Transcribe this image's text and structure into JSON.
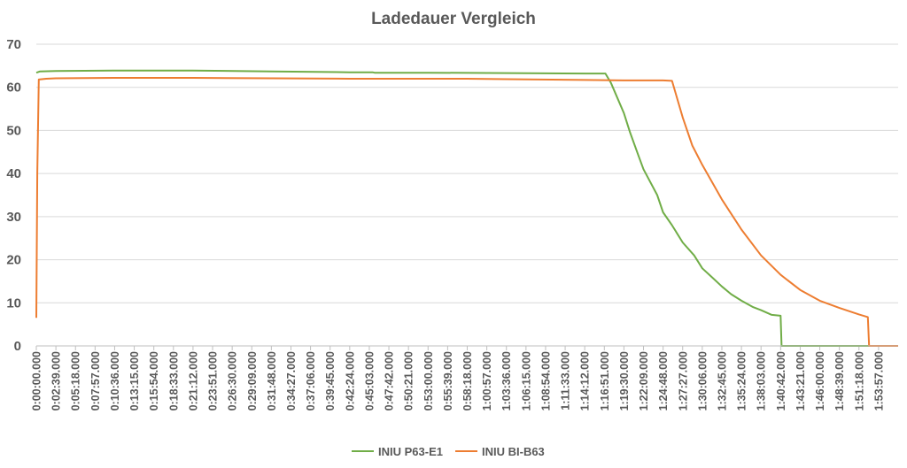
{
  "chart_data": {
    "type": "line",
    "title": "Ladedauer Vergleich",
    "xlabel": "",
    "ylabel": "",
    "ylim": [
      0,
      70
    ],
    "yticks": [
      0,
      10,
      20,
      30,
      40,
      50,
      60,
      70
    ],
    "xlim": [
      "0:00:00.000",
      "1:56:36.000"
    ],
    "xticks": [
      "0:00:00.000",
      "0:02:39.000",
      "0:05:18.000",
      "0:07:57.000",
      "0:10:36.000",
      "0:13:15.000",
      "0:15:54.000",
      "0:18:33.000",
      "0:21:12.000",
      "0:23:51.000",
      "0:26:30.000",
      "0:29:09.000",
      "0:31:48.000",
      "0:34:27.000",
      "0:37:06.000",
      "0:39:45.000",
      "0:42:24.000",
      "0:45:03.000",
      "0:47:42.000",
      "0:50:21.000",
      "0:53:00.000",
      "0:55:39.000",
      "0:58:18.000",
      "1:00:57.000",
      "1:03:36.000",
      "1:06:15.000",
      "1:08:54.000",
      "1:11:33.000",
      "1:14:12.000",
      "1:16:51.000",
      "1:19:30.000",
      "1:22:09.000",
      "1:24:48.000",
      "1:27:27.000",
      "1:30:06.000",
      "1:32:45.000",
      "1:35:24.000",
      "1:38:03.000",
      "1:40:42.000",
      "1:43:21.000",
      "1:46:00.000",
      "1:48:39.000",
      "1:51:18.000",
      "1:53:57.000"
    ],
    "grid": true,
    "legend": "bottom",
    "series": [
      {
        "name": "INIU P63-E1",
        "color": "#70ad47",
        "x": [
          "0:00:00",
          "0:00:30",
          "0:02:39",
          "0:10:36",
          "0:21:12",
          "0:31:48",
          "0:42:24",
          "0:45:30",
          "0:45:45",
          "0:53:00",
          "1:03:36",
          "1:14:12",
          "1:17:00",
          "1:17:45",
          "1:19:30",
          "1:20:20",
          "1:21:30",
          "1:22:09",
          "1:24:00",
          "1:24:48",
          "1:26:00",
          "1:27:27",
          "1:29:00",
          "1:30:06",
          "1:31:30",
          "1:32:45",
          "1:34:00",
          "1:35:24",
          "1:37:00",
          "1:38:03",
          "1:39:30",
          "1:40:42",
          "1:40:50",
          "1:51:18",
          "1:53:57"
        ],
        "y": [
          63.4,
          63.7,
          63.8,
          63.9,
          63.9,
          63.7,
          63.5,
          63.5,
          63.4,
          63.4,
          63.3,
          63.2,
          63.2,
          61.0,
          54.0,
          49.5,
          44.0,
          41.0,
          35.0,
          31.0,
          28.0,
          24.0,
          21.0,
          18.0,
          15.8,
          13.8,
          12.0,
          10.5,
          9.0,
          8.3,
          7.2,
          7.0,
          0,
          0,
          0
        ]
      },
      {
        "name": "INIU BI-B63",
        "color": "#ed7d31",
        "x": [
          "0:00:00",
          "0:00:08",
          "0:00:20",
          "0:01:20",
          "0:02:39",
          "0:10:36",
          "0:21:12",
          "0:31:48",
          "0:42:24",
          "0:53:00",
          "0:58:18",
          "1:03:36",
          "1:14:12",
          "1:19:30",
          "1:24:48",
          "1:26:00",
          "1:27:27",
          "1:28:45",
          "1:30:06",
          "1:32:45",
          "1:35:24",
          "1:38:03",
          "1:40:42",
          "1:43:21",
          "1:46:00",
          "1:48:39",
          "1:51:18",
          "1:52:30",
          "1:52:40",
          "1:56:36"
        ],
        "y": [
          6.5,
          40.0,
          61.8,
          62.0,
          62.1,
          62.2,
          62.2,
          62.1,
          62.0,
          62.0,
          62.0,
          61.9,
          61.7,
          61.6,
          61.6,
          61.5,
          53.0,
          46.5,
          42.0,
          34.0,
          27.0,
          21.0,
          16.5,
          13.0,
          10.5,
          8.8,
          7.3,
          6.7,
          0,
          0
        ]
      }
    ]
  }
}
